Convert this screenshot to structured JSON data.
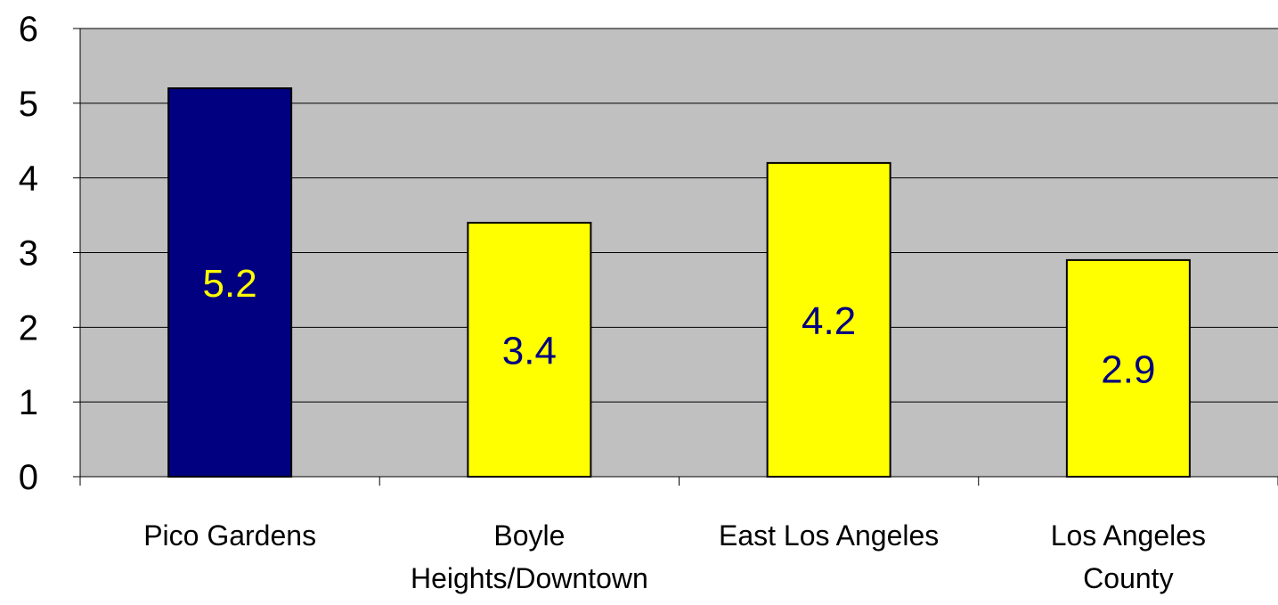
{
  "chart_data": {
    "type": "bar",
    "categories": [
      [
        "Pico Gardens"
      ],
      [
        "Boyle",
        "Heights/Downtown"
      ],
      [
        "East Los Angeles"
      ],
      [
        "Los Angeles",
        "County"
      ]
    ],
    "values": [
      5.2,
      3.4,
      4.2,
      2.9
    ],
    "data_labels": [
      "5.2",
      "3.4",
      "4.2",
      "2.9"
    ],
    "bar_colors": [
      "#000080",
      "#FFFF00",
      "#FFFF00",
      "#FFFF00"
    ],
    "label_colors": [
      "#FFFF00",
      "#000080",
      "#000080",
      "#000080"
    ],
    "ylim": [
      0,
      6
    ],
    "y_ticks": [
      "0",
      "1",
      "2",
      "3",
      "4",
      "5",
      "6"
    ],
    "grid": true,
    "plot_background": "#C0C0C0",
    "title": "",
    "xlabel": "",
    "ylabel": ""
  }
}
